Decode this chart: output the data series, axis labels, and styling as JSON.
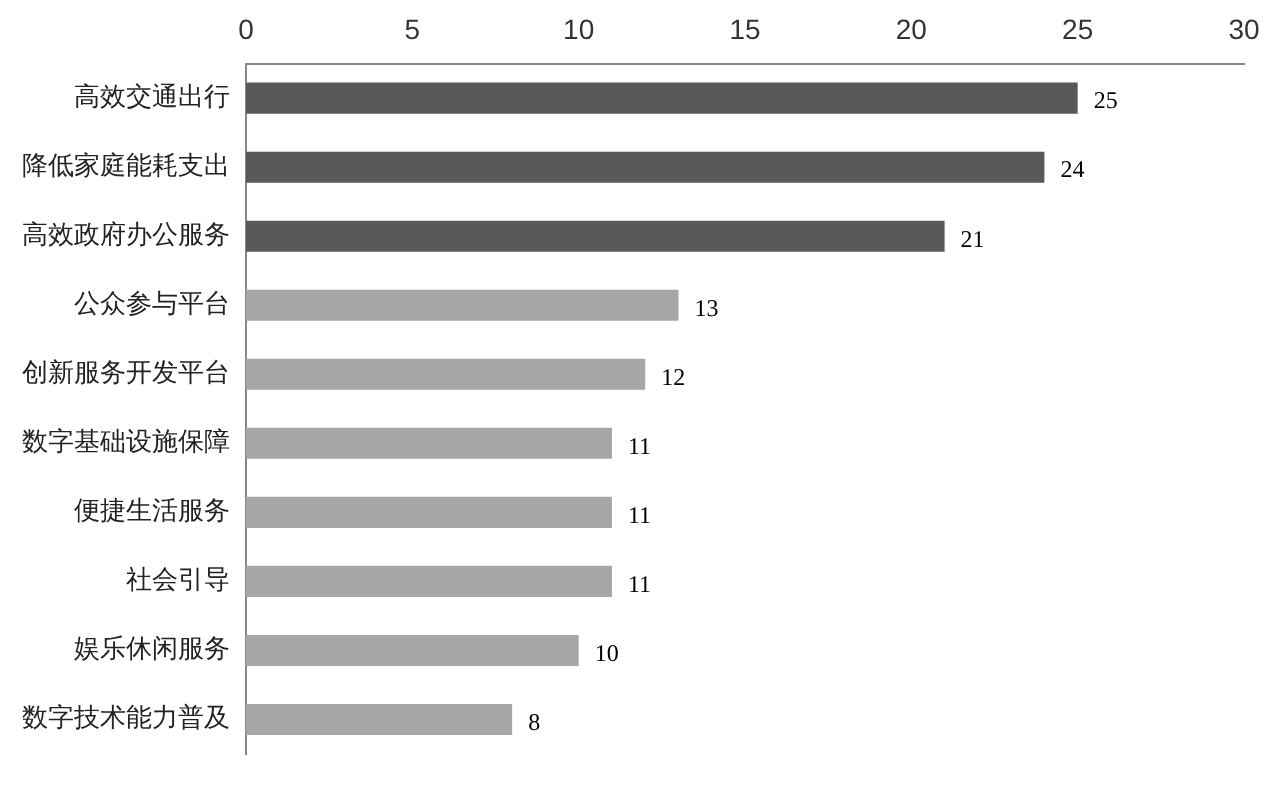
{
  "chart_data": {
    "type": "bar",
    "orientation": "horizontal",
    "categories": [
      "高效交通出行",
      "降低家庭能耗支出",
      "高效政府办公服务",
      "公众参与平台",
      "创新服务开发平台",
      "数字基础设施保障",
      "便捷生活服务",
      "社会引导",
      "娱乐休闲服务",
      "数字技术能力普及"
    ],
    "values": [
      25,
      24,
      21,
      13,
      12,
      11,
      11,
      11,
      10,
      8
    ],
    "colors": [
      "#595959",
      "#595959",
      "#595959",
      "#a6a6a6",
      "#a6a6a6",
      "#a6a6a6",
      "#a6a6a6",
      "#a6a6a6",
      "#a6a6a6",
      "#a6a6a6"
    ],
    "xlim": [
      0,
      30
    ],
    "xticks": [
      0,
      5,
      10,
      15,
      20,
      25,
      30
    ],
    "grid": false,
    "legend": false,
    "data_labels": true
  }
}
